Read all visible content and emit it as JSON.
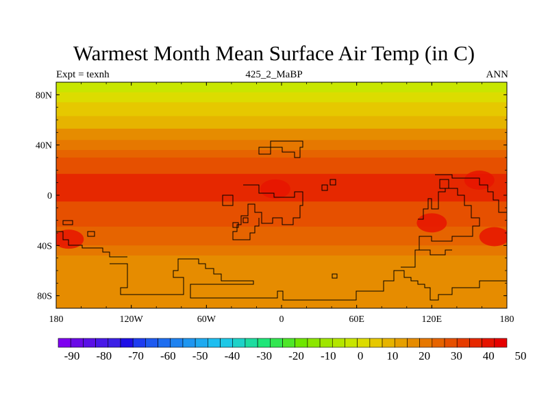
{
  "title": "Warmest Month Mean Surface Air Temp (in C)",
  "subtitle_left": "Expt = texnh",
  "subtitle_center": "425_2_MaBP",
  "subtitle_right": "ANN",
  "map": {
    "lon_range": [
      -180,
      180
    ],
    "lat_range": [
      -90,
      90
    ],
    "x_ticks": [
      {
        "value": -180,
        "label": "180"
      },
      {
        "value": -120,
        "label": "120W"
      },
      {
        "value": -60,
        "label": "60W"
      },
      {
        "value": 0,
        "label": "0"
      },
      {
        "value": 60,
        "label": "60E"
      },
      {
        "value": 120,
        "label": "120E"
      },
      {
        "value": 180,
        "label": "180"
      }
    ],
    "y_ticks": [
      {
        "value": 80,
        "label": "80N"
      },
      {
        "value": 40,
        "label": "40N"
      },
      {
        "value": 0,
        "label": "0"
      },
      {
        "value": -40,
        "label": "40S"
      },
      {
        "value": -80,
        "label": "80S"
      }
    ],
    "zonal_temperature_bands": [
      {
        "lat_from": 90,
        "lat_to": 82,
        "temp": 0
      },
      {
        "lat_from": 82,
        "lat_to": 74,
        "temp": 5
      },
      {
        "lat_from": 74,
        "lat_to": 63,
        "temp": 10
      },
      {
        "lat_from": 63,
        "lat_to": 53,
        "temp": 15
      },
      {
        "lat_from": 53,
        "lat_to": 44,
        "temp": 20
      },
      {
        "lat_from": 44,
        "lat_to": 36,
        "temp": 25
      },
      {
        "lat_from": 36,
        "lat_to": 30,
        "temp": 30
      },
      {
        "lat_from": 30,
        "lat_to": 17,
        "temp": 35
      },
      {
        "lat_from": 17,
        "lat_to": -5,
        "temp": 40
      },
      {
        "lat_from": -5,
        "lat_to": -25,
        "temp": 35
      },
      {
        "lat_from": -25,
        "lat_to": -40,
        "temp": 30
      },
      {
        "lat_from": -40,
        "lat_to": -48,
        "temp": 25
      },
      {
        "lat_from": -48,
        "lat_to": -90,
        "temp": 20
      }
    ],
    "warm_regions": [
      {
        "lat": -35,
        "lon": -170,
        "temp": 45
      },
      {
        "lat": -33,
        "lon": 170,
        "temp": 45
      },
      {
        "lat": -22,
        "lon": 120,
        "temp": 45
      },
      {
        "lat": 5,
        "lon": -5,
        "temp": 45
      },
      {
        "lat": 12,
        "lon": 158,
        "temp": 45
      }
    ]
  },
  "colorbar": {
    "colors": [
      "#7e00f0",
      "#6a0ae6",
      "#5a10e6",
      "#4818e8",
      "#3c20e6",
      "#1e0ee6",
      "#1e3cf0",
      "#1e5af0",
      "#1e6ef0",
      "#1e82f0",
      "#1e96f0",
      "#1eaaf0",
      "#1ebef0",
      "#1ec8e6",
      "#1ed2c8",
      "#1edca0",
      "#1ee678",
      "#32e650",
      "#4ee628",
      "#6ee600",
      "#8ce600",
      "#a0e600",
      "#b4e600",
      "#c8e600",
      "#dcdc00",
      "#e6c800",
      "#e6b400",
      "#e6a000",
      "#e68c00",
      "#e67800",
      "#e66400",
      "#e65000",
      "#e63c00",
      "#e62800",
      "#e61400",
      "#e60000"
    ],
    "labels": [
      {
        "value": -90,
        "label": "-90"
      },
      {
        "value": -80,
        "label": "-80"
      },
      {
        "value": -70,
        "label": "-70"
      },
      {
        "value": -60,
        "label": "-60"
      },
      {
        "value": -50,
        "label": "-50"
      },
      {
        "value": -40,
        "label": "-40"
      },
      {
        "value": -30,
        "label": "-30"
      },
      {
        "value": -20,
        "label": "-20"
      },
      {
        "value": -10,
        "label": "-10"
      },
      {
        "value": 0,
        "label": "0"
      },
      {
        "value": 10,
        "label": "10"
      },
      {
        "value": 20,
        "label": "20"
      },
      {
        "value": 30,
        "label": "30"
      },
      {
        "value": 40,
        "label": "40"
      },
      {
        "value": 50,
        "label": "50"
      }
    ]
  }
}
